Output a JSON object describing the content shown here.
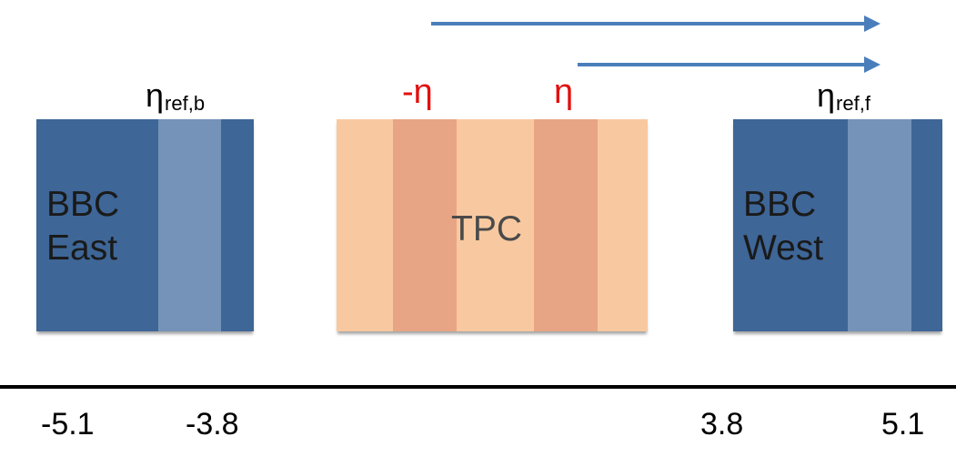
{
  "detectors": {
    "bbc_east": {
      "line1": "BBC",
      "line2": "East"
    },
    "tpc": {
      "label": "TPC"
    },
    "bbc_west": {
      "line1": "BBC",
      "line2": "West"
    }
  },
  "eta_labels": {
    "ref_backward": {
      "symbol": "η",
      "subscript": "ref,b"
    },
    "ref_forward": {
      "symbol": "η",
      "subscript": "ref,f"
    },
    "minus_eta": "-η",
    "eta": "η"
  },
  "axis_ticks": [
    "-5.1",
    "-3.8",
    "3.8",
    "5.1"
  ],
  "colors": {
    "bbc_dark": "#3e6697",
    "bbc_light": "#7593b8",
    "tpc_light": "#f8c9a0",
    "tpc_band": "#e8a585",
    "arrow": "#4a7ebb",
    "eta_red": "#e1100f"
  }
}
